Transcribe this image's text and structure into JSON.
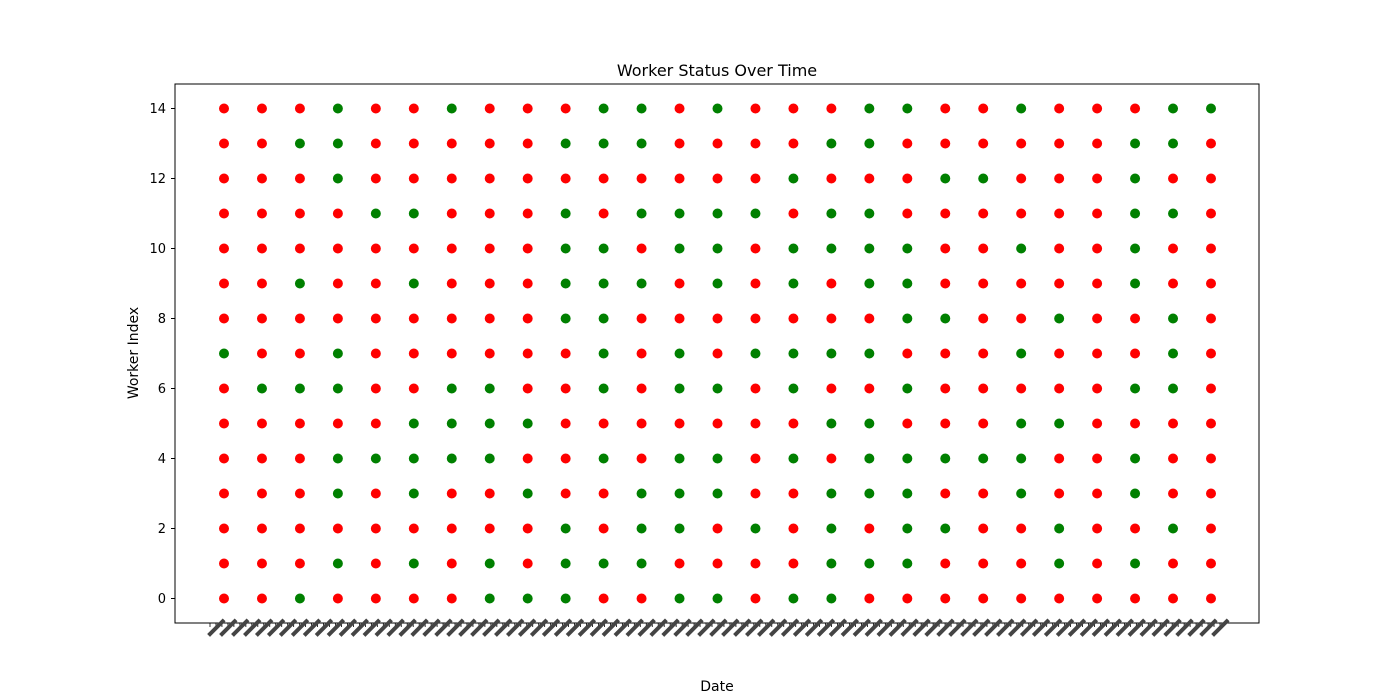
{
  "chart_data": {
    "type": "scatter",
    "title": "Worker Status Over Time",
    "xlabel": "Date",
    "ylabel": "Worker Index",
    "y_ticks": [
      0,
      2,
      4,
      6,
      8,
      10,
      12,
      14
    ],
    "ylim": [
      -0.7,
      14.7
    ],
    "grid": false,
    "colors": {
      "active": "#008000",
      "inactive": "#ff0000"
    },
    "workers": [
      0,
      1,
      2,
      3,
      4,
      5,
      6,
      7,
      8,
      9,
      10,
      11,
      12,
      13,
      14
    ],
    "timepoint_count": 27,
    "status_codes": {
      "G": "green",
      "R": "red"
    },
    "status_by_worker": [
      "RRGRRRRGGGRRGGRGGRRRRRRRRRR",
      "RRRGRGRGRGGGRRRRGGGRRRGRGRR",
      "RRRRRRRRRGRGGRGRGRGGRRGRRGR",
      "RRRGRGRRGRRGGGRRGGGRRGRRGRR",
      "RRRGGGGGRRGRGGRGRGGGGGRRGRR",
      "RRRRRGGGGRRRRRRRGGRRRGGRRRR",
      "RGGGRRGGRRGRGGRGRRGRRRRRGGR",
      "GRRGRRRRRRGRGRGGGGRRRGRRRGR",
      "RRRRRRRRRGGRRRRRRRGGRRGRRGR",
      "RRGRRGRRRGGGRGRGRGGRRRRRGRR",
      "RRRRRRRRRGGRGGRGGGGRRGRRGRR",
      "RRRRGGRRRGRGGGGRGGRRRRRRGGR",
      "RRRGRRRRRRRRRRRGRRRGGRRRGRR",
      "RRGGRRRRRGGGRRRRGGRRRRRRGGR",
      "RRRGRRGRRRGGRGRRRGGRRGRRRGG"
    ]
  }
}
